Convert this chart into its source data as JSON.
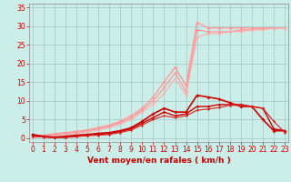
{
  "title": "",
  "xlabel": "Vent moyen/en rafales ( km/h )",
  "background_color": "#cceee8",
  "grid_color": "#aacccc",
  "x_ticks": [
    0,
    1,
    2,
    3,
    4,
    5,
    6,
    7,
    8,
    9,
    10,
    11,
    12,
    13,
    14,
    15,
    16,
    17,
    18,
    19,
    20,
    21,
    22,
    23
  ],
  "y_ticks": [
    0,
    5,
    10,
    15,
    20,
    25,
    30,
    35
  ],
  "ylim": [
    -1,
    36
  ],
  "xlim": [
    -0.3,
    23.3
  ],
  "series_pink": [
    {
      "x": [
        0,
        1,
        2,
        3,
        4,
        5,
        6,
        7,
        8,
        9,
        10,
        11,
        12,
        13,
        14,
        15,
        16,
        17,
        18,
        19,
        20,
        21,
        22,
        23
      ],
      "y": [
        0.5,
        0.8,
        1.2,
        1.5,
        1.8,
        2.2,
        2.8,
        3.5,
        4.5,
        6.0,
        8.0,
        11.0,
        15.0,
        19.0,
        14.0,
        31.0,
        29.5,
        29.5,
        29.5,
        29.5,
        29.5,
        29.5,
        29.5,
        29.5
      ],
      "color": "#ff9999",
      "lw": 1.0,
      "marker": "D",
      "ms": 2.0
    },
    {
      "x": [
        0,
        1,
        2,
        3,
        4,
        5,
        6,
        7,
        8,
        9,
        10,
        11,
        12,
        13,
        14,
        15,
        16,
        17,
        18,
        19,
        20,
        21,
        22,
        23
      ],
      "y": [
        0.3,
        0.6,
        1.0,
        1.3,
        1.6,
        2.0,
        2.5,
        3.2,
        4.2,
        5.5,
        7.5,
        10.0,
        13.5,
        17.5,
        12.5,
        29.0,
        28.5,
        28.5,
        28.5,
        29.0,
        29.0,
        29.5,
        29.5,
        29.5
      ],
      "color": "#ff9999",
      "lw": 0.9,
      "marker": "D",
      "ms": 1.8
    },
    {
      "x": [
        0,
        1,
        2,
        3,
        4,
        5,
        6,
        7,
        8,
        9,
        10,
        11,
        12,
        13,
        14,
        15,
        16,
        17,
        18,
        19,
        20,
        21,
        22,
        23
      ],
      "y": [
        0.2,
        0.4,
        0.8,
        1.0,
        1.3,
        1.7,
        2.2,
        2.8,
        3.8,
        5.0,
        7.0,
        9.0,
        12.0,
        16.0,
        11.5,
        27.0,
        28.0,
        28.0,
        28.5,
        28.5,
        29.0,
        29.0,
        29.5,
        29.5
      ],
      "color": "#ffaaaa",
      "lw": 0.8,
      "marker": "D",
      "ms": 1.5
    }
  ],
  "series_red": [
    {
      "x": [
        0,
        1,
        2,
        3,
        4,
        5,
        6,
        7,
        8,
        9,
        10,
        11,
        12,
        13,
        14,
        15,
        16,
        17,
        18,
        19,
        20,
        21,
        22,
        23
      ],
      "y": [
        1.0,
        0.5,
        0.3,
        0.5,
        0.8,
        1.0,
        1.3,
        1.5,
        2.0,
        2.8,
        4.5,
        6.5,
        8.0,
        7.0,
        7.0,
        11.5,
        11.0,
        10.5,
        9.5,
        8.5,
        8.5,
        5.0,
        2.0,
        2.0
      ],
      "color": "#cc0000",
      "lw": 1.2,
      "marker": "D",
      "ms": 2.0
    },
    {
      "x": [
        0,
        1,
        2,
        3,
        4,
        5,
        6,
        7,
        8,
        9,
        10,
        11,
        12,
        13,
        14,
        15,
        16,
        17,
        18,
        19,
        20,
        21,
        22,
        23
      ],
      "y": [
        0.8,
        0.4,
        0.2,
        0.3,
        0.6,
        0.8,
        1.0,
        1.3,
        1.8,
        2.5,
        4.0,
        5.5,
        7.0,
        6.0,
        6.5,
        8.5,
        8.5,
        9.0,
        9.0,
        9.0,
        8.5,
        8.0,
        2.5,
        2.0
      ],
      "color": "#cc0000",
      "lw": 1.0,
      "marker": "D",
      "ms": 1.8
    },
    {
      "x": [
        0,
        1,
        2,
        3,
        4,
        5,
        6,
        7,
        8,
        9,
        10,
        11,
        12,
        13,
        14,
        15,
        16,
        17,
        18,
        19,
        20,
        21,
        22,
        23
      ],
      "y": [
        0.5,
        0.3,
        0.1,
        0.2,
        0.4,
        0.7,
        0.8,
        1.0,
        1.5,
        2.2,
        3.5,
        5.0,
        6.0,
        5.5,
        6.0,
        7.5,
        7.8,
        8.2,
        8.8,
        8.8,
        8.5,
        8.0,
        4.5,
        1.5
      ],
      "color": "#dd2222",
      "lw": 0.8,
      "marker": "D",
      "ms": 1.5
    }
  ],
  "xlabel_color": "#cc0000",
  "tick_color": "#cc0000",
  "axis_label_fontsize": 6.5,
  "tick_fontsize": 5.5
}
